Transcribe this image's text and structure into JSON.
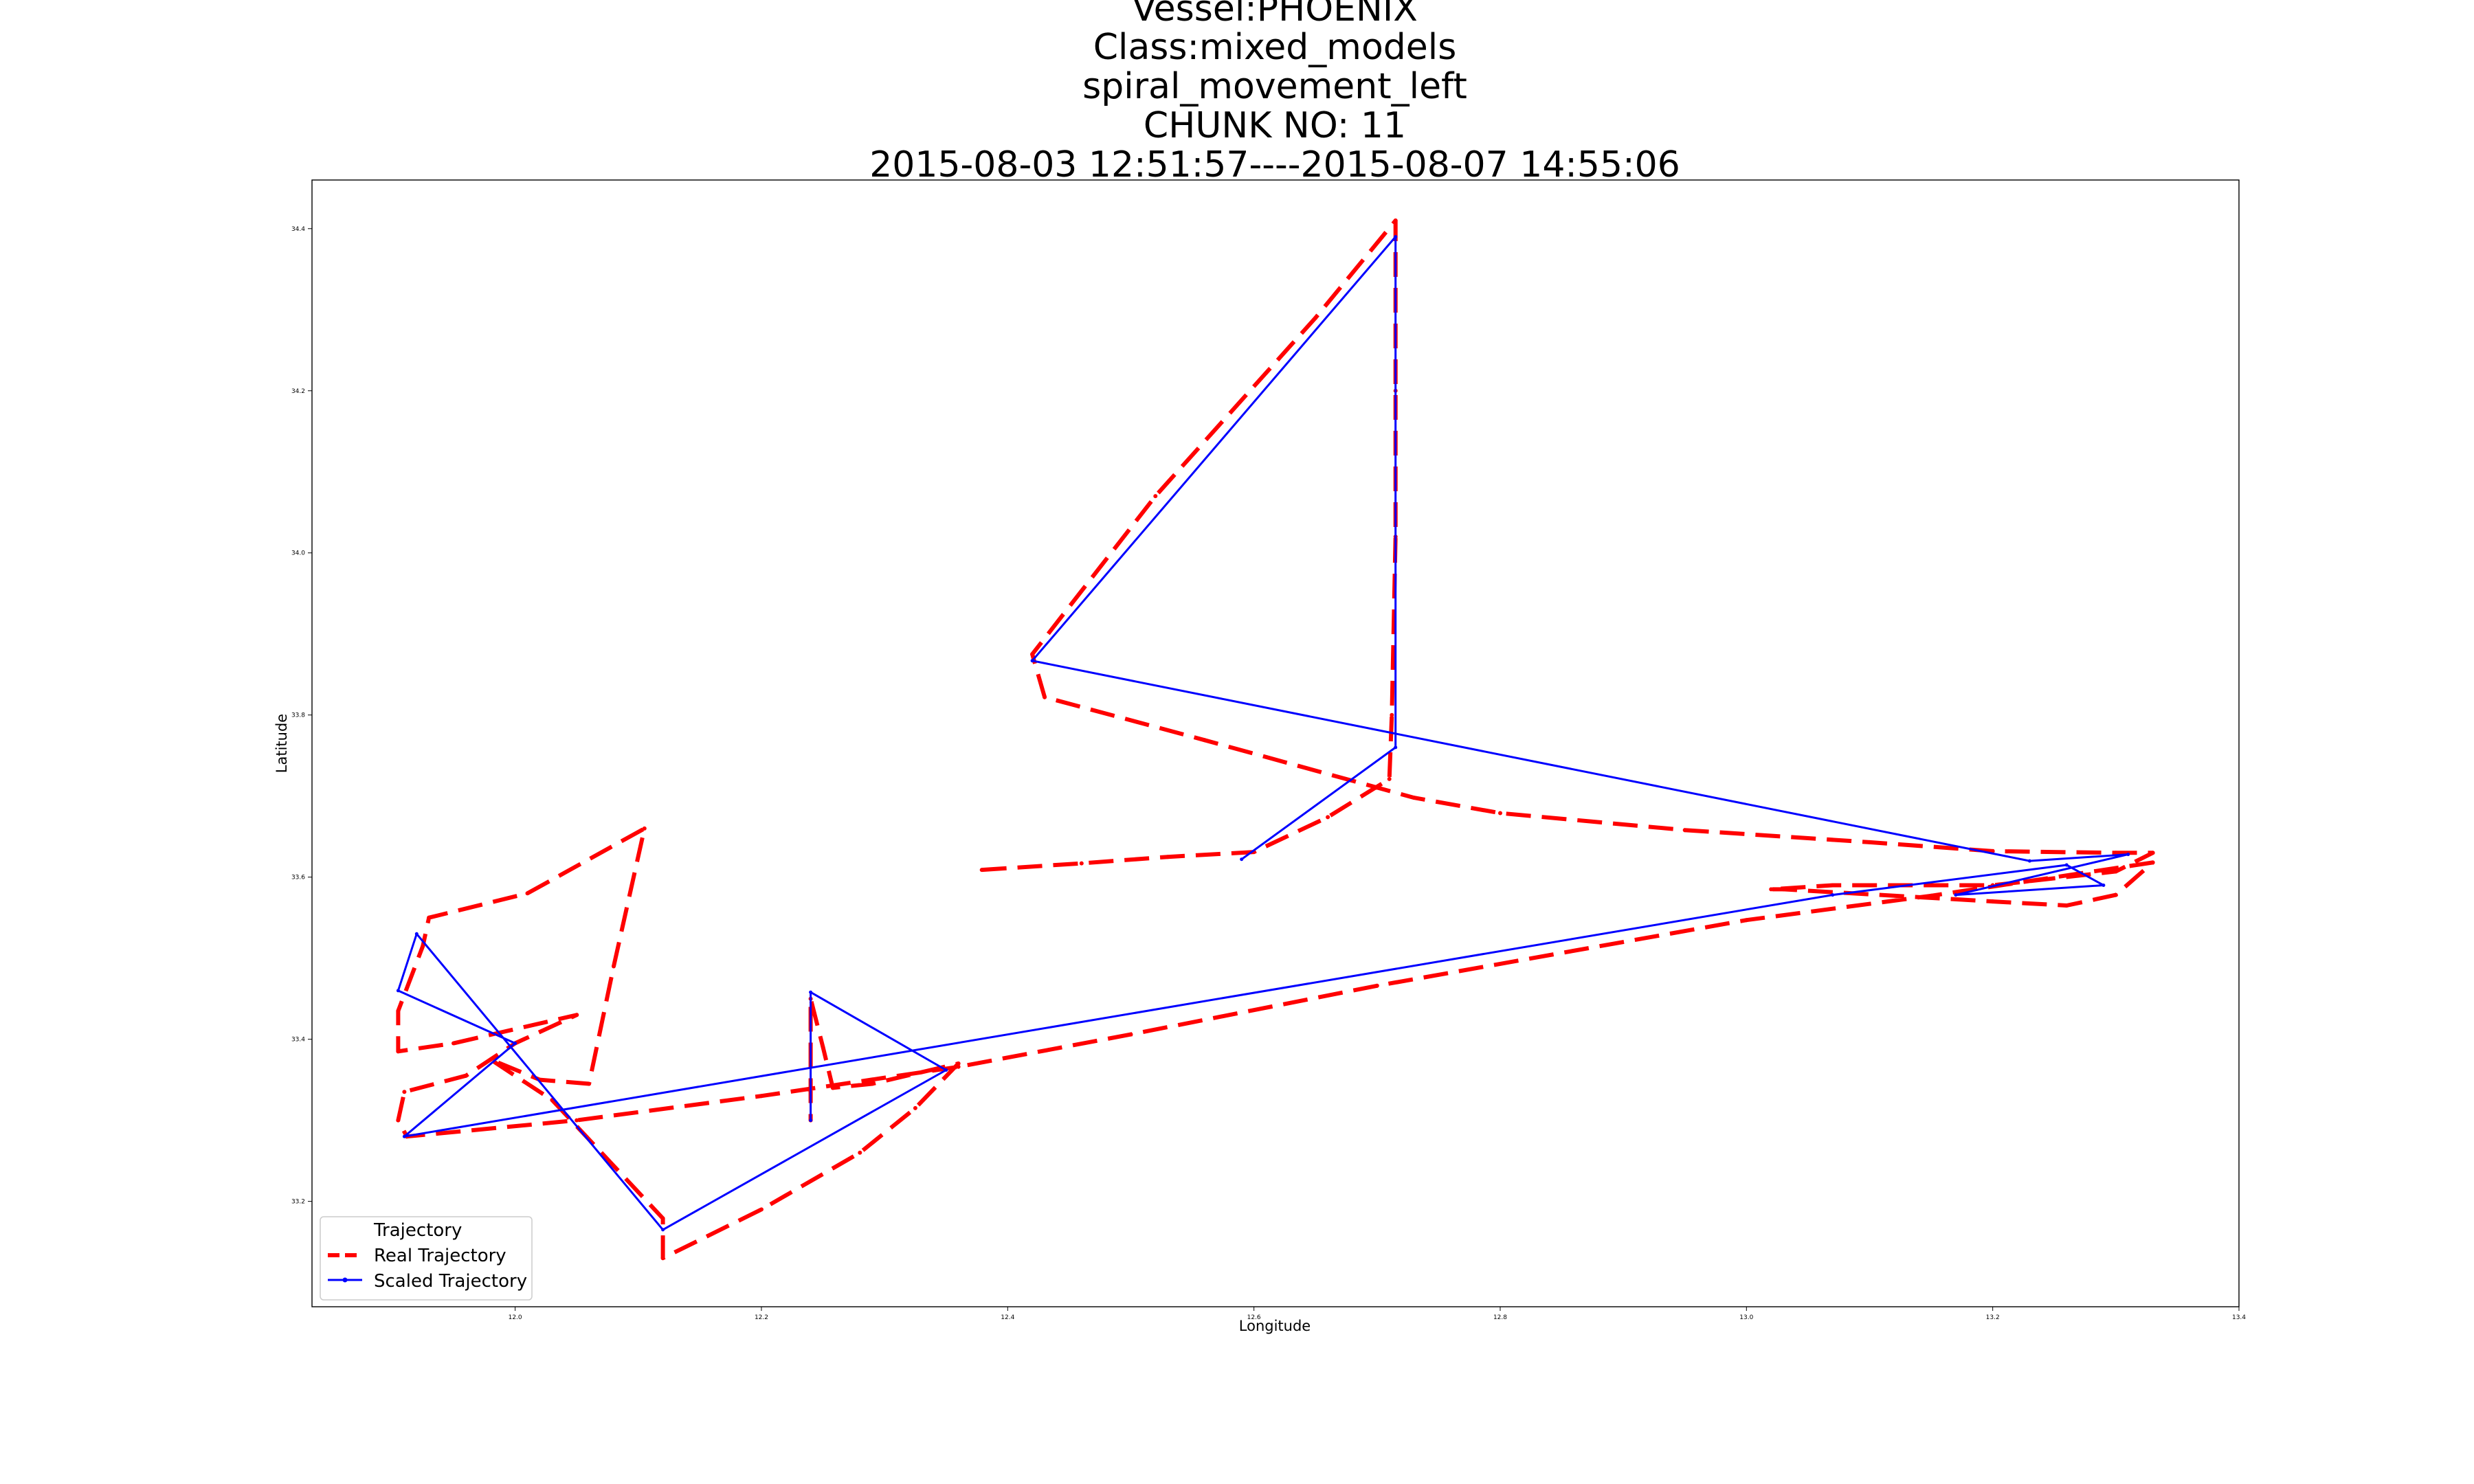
{
  "chart_data": {
    "type": "line",
    "title_lines": [
      "Vessel:PHOENIX",
      "Class:mixed_models",
      "spiral_movement_left",
      "CHUNK NO: 11",
      "2015-08-03 12:51:57----2015-08-07 14:55:06"
    ],
    "xlabel": "Longitude",
    "ylabel": "Latitude",
    "xlim": [
      11.835,
      13.4
    ],
    "ylim": [
      33.07,
      34.46
    ],
    "xticks": [
      12.0,
      12.2,
      12.4,
      12.6,
      12.8,
      13.0,
      13.2,
      13.4
    ],
    "xtick_labels": [
      "12.0",
      "12.2",
      "12.4",
      "12.6",
      "12.8",
      "13.0",
      "13.2",
      "13.4"
    ],
    "yticks": [
      33.2,
      33.4,
      33.6,
      33.8,
      34.0,
      34.2,
      34.4
    ],
    "ytick_labels": [
      "33.2",
      "33.4",
      "33.6",
      "33.8",
      "34.0",
      "34.2",
      "34.4"
    ],
    "grid": false,
    "legend": {
      "title": "Trajectory",
      "placement": "lower-left",
      "entries": [
        "Real Trajectory",
        "Scaled Trajectory"
      ]
    },
    "series": [
      {
        "name": "Real Trajectory",
        "color": "#ff0000",
        "style": "dashed",
        "points": [
          [
            12.379,
            33.609
          ],
          [
            12.46,
            33.617
          ],
          [
            12.53,
            33.625
          ],
          [
            12.6,
            33.631
          ],
          [
            12.66,
            33.674
          ],
          [
            12.71,
            33.721
          ],
          [
            12.712,
            33.8
          ],
          [
            12.715,
            34.02
          ],
          [
            12.715,
            34.2
          ],
          [
            12.715,
            34.41
          ],
          [
            12.65,
            34.29
          ],
          [
            12.52,
            34.07
          ],
          [
            12.42,
            33.875
          ],
          [
            12.43,
            33.822
          ],
          [
            12.56,
            33.769
          ],
          [
            12.73,
            33.698
          ],
          [
            12.8,
            33.679
          ],
          [
            12.95,
            33.658
          ],
          [
            13.1,
            33.643
          ],
          [
            13.2,
            33.632
          ],
          [
            13.3,
            33.63
          ],
          [
            13.33,
            33.63
          ],
          [
            13.3,
            33.607
          ],
          [
            13.2,
            33.59
          ],
          [
            13.07,
            33.59
          ],
          [
            13.02,
            33.585
          ],
          [
            13.03,
            33.585
          ],
          [
            13.2,
            33.57
          ],
          [
            13.26,
            33.565
          ],
          [
            13.3,
            33.578
          ],
          [
            13.33,
            33.618
          ],
          [
            13.15,
            33.577
          ],
          [
            13.0,
            33.547
          ],
          [
            12.7,
            33.466
          ],
          [
            12.5,
            33.406
          ],
          [
            12.36,
            33.366
          ],
          [
            12.2,
            33.33
          ],
          [
            12.05,
            33.3
          ],
          [
            11.912,
            33.28
          ],
          [
            11.905,
            33.3
          ],
          [
            11.91,
            33.335
          ],
          [
            11.96,
            33.355
          ],
          [
            12.0,
            33.395
          ],
          [
            12.05,
            33.43
          ],
          [
            11.95,
            33.395
          ],
          [
            11.905,
            33.385
          ],
          [
            11.905,
            33.435
          ],
          [
            11.925,
            33.515
          ],
          [
            11.93,
            33.55
          ],
          [
            12.01,
            33.58
          ],
          [
            12.105,
            33.66
          ],
          [
            12.08,
            33.49
          ],
          [
            12.06,
            33.345
          ],
          [
            12.02,
            33.35
          ],
          [
            11.98,
            33.375
          ],
          [
            12.03,
            33.325
          ],
          [
            12.12,
            33.179
          ],
          [
            12.12,
            33.13
          ],
          [
            12.2,
            33.19
          ],
          [
            12.28,
            33.26
          ],
          [
            12.325,
            33.315
          ],
          [
            12.36,
            33.37
          ],
          [
            12.29,
            33.345
          ],
          [
            12.258,
            33.34
          ],
          [
            12.25,
            33.39
          ],
          [
            12.24,
            33.45
          ],
          [
            12.24,
            33.3
          ]
        ]
      },
      {
        "name": "Scaled Trajectory",
        "color": "#0000ff",
        "style": "solid",
        "points": [
          [
            12.59,
            33.622
          ],
          [
            12.715,
            33.76
          ],
          [
            12.715,
            34.39
          ],
          [
            12.42,
            33.867
          ],
          [
            13.23,
            33.62
          ],
          [
            13.31,
            33.628
          ],
          [
            13.17,
            33.578
          ],
          [
            13.29,
            33.59
          ],
          [
            13.26,
            33.615
          ],
          [
            13.07,
            33.578
          ],
          [
            11.91,
            33.28
          ],
          [
            12.0,
            33.395
          ],
          [
            11.905,
            33.46
          ],
          [
            11.92,
            33.53
          ],
          [
            12.12,
            33.165
          ],
          [
            12.35,
            33.362
          ],
          [
            12.24,
            33.458
          ],
          [
            12.24,
            33.3
          ]
        ]
      }
    ]
  }
}
